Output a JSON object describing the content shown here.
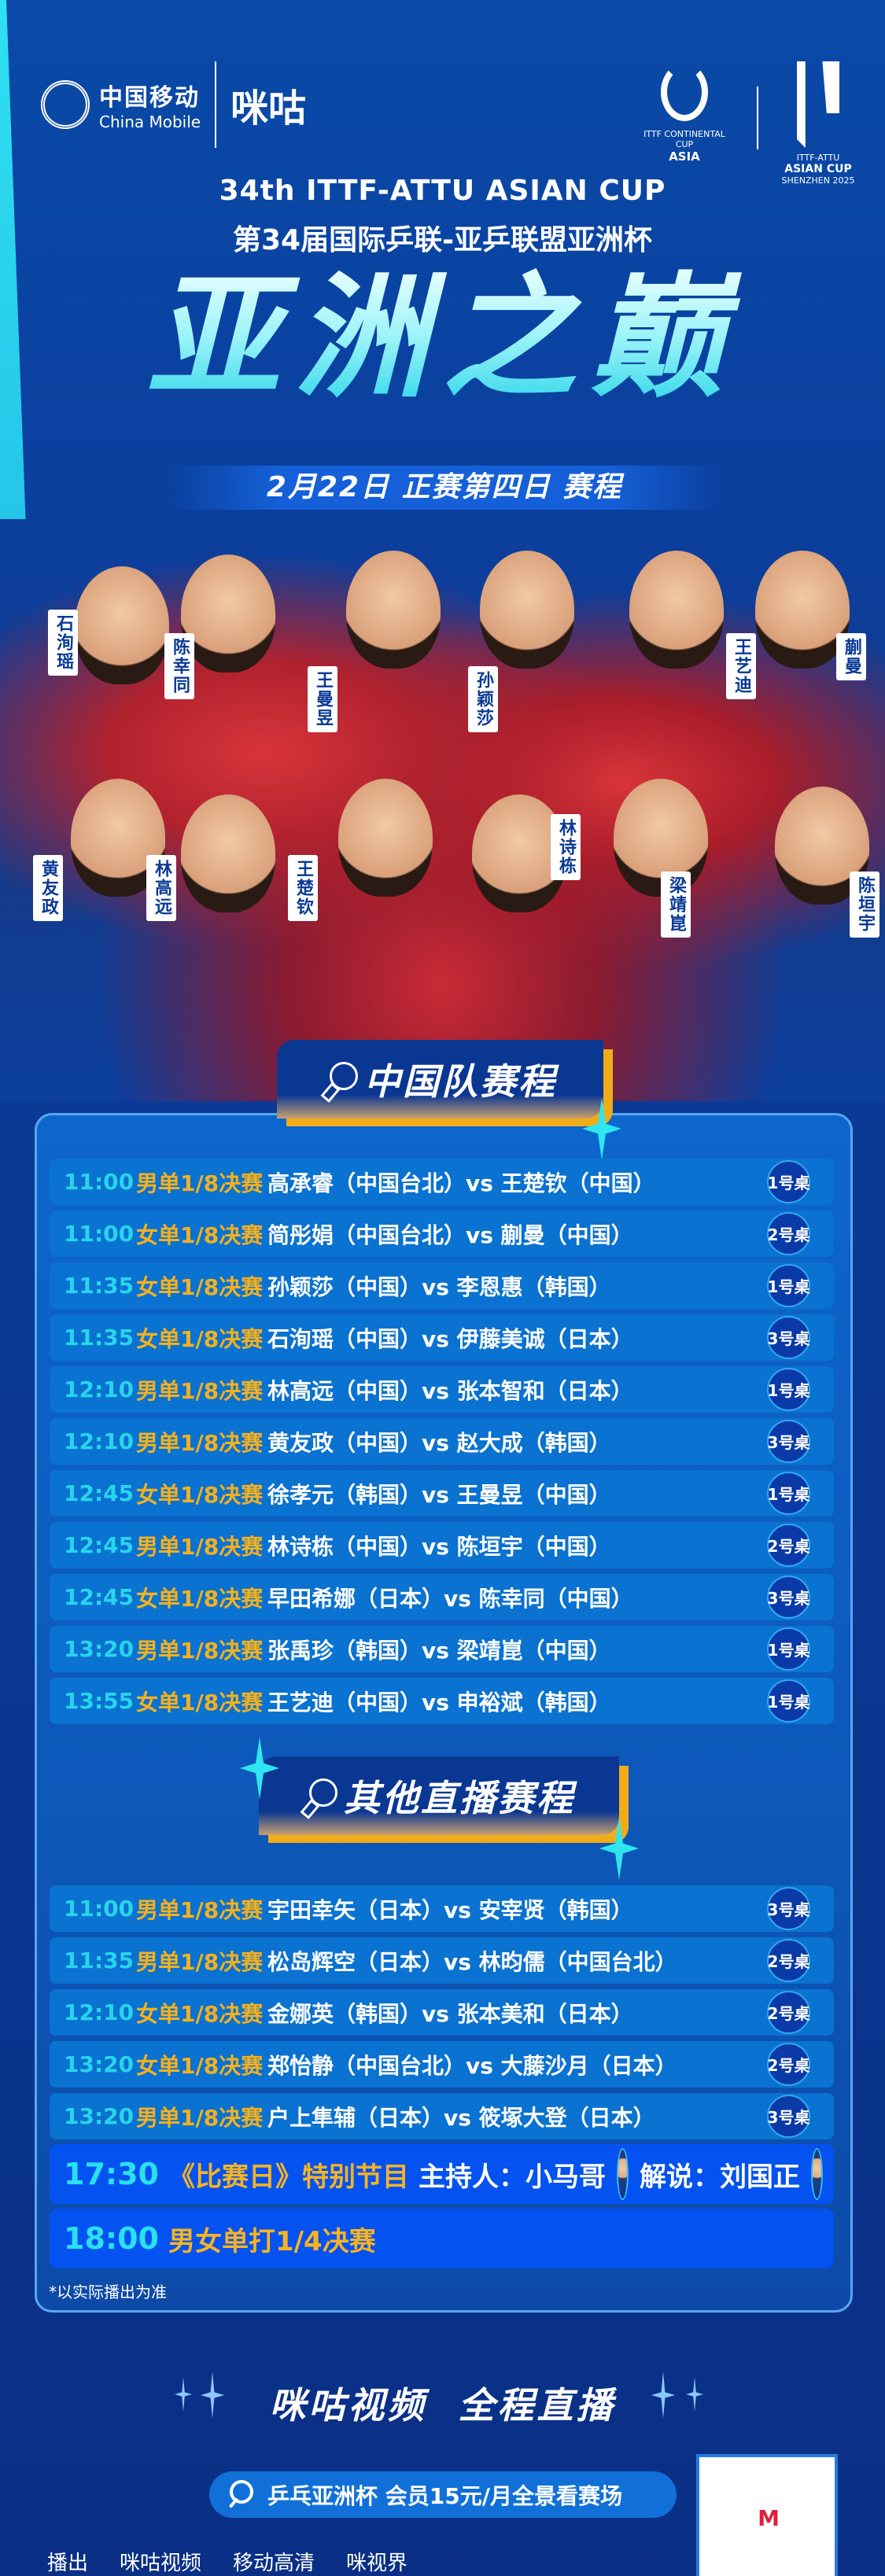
{
  "header": {
    "china_mobile_zh": "中国移动",
    "china_mobile_en": "China Mobile",
    "migu": "咪咕",
    "ittf_line1": "ITTF CONTINENTAL CUP",
    "ittf_line2": "ASIA",
    "attu_line1": "ITTF-ATTU",
    "attu_line2": "ASIAN CUP",
    "attu_line3": "SHENZHEN 2025"
  },
  "title": {
    "en": "34th ITTF-ATTU ASIAN CUP",
    "zh": "第34届国际乒联-亚乒联盟亚洲杯",
    "main": "亚洲之巅",
    "date": "2月22日  正赛第四日  赛程"
  },
  "players": [
    "石洵瑶",
    "陈幸同",
    "王曼昱",
    "孙颖莎",
    "王艺迪",
    "蒯曼",
    "黄友政",
    "林高远",
    "王楚钦",
    "林诗栋",
    "梁靖崑",
    "陈垣宇"
  ],
  "china_section": {
    "title": "中国队赛程",
    "icon": "ping-pong-paddle-icon",
    "rows": [
      {
        "time": "11:00",
        "category": "男单1/8决赛",
        "match": "高承睿（中国台北）vs 王楚钦（中国）",
        "table": "1号桌"
      },
      {
        "time": "11:00",
        "category": "女单1/8决赛",
        "match": "简彤娟（中国台北）vs 蒯曼（中国）",
        "table": "2号桌"
      },
      {
        "time": "11:35",
        "category": "女单1/8决赛",
        "match": "孙颖莎（中国）vs 李恩惠（韩国）",
        "table": "1号桌"
      },
      {
        "time": "11:35",
        "category": "女单1/8决赛",
        "match": "石洵瑶（中国）vs 伊藤美诚（日本）",
        "table": "3号桌"
      },
      {
        "time": "12:10",
        "category": "男单1/8决赛",
        "match": "林高远（中国）vs 张本智和（日本）",
        "table": "1号桌"
      },
      {
        "time": "12:10",
        "category": "男单1/8决赛",
        "match": "黄友政（中国）vs 赵大成（韩国）",
        "table": "3号桌"
      },
      {
        "time": "12:45",
        "category": "女单1/8决赛",
        "match": "徐孝元（韩国）vs 王曼昱（中国）",
        "table": "1号桌"
      },
      {
        "time": "12:45",
        "category": "男单1/8决赛",
        "match": "林诗栋（中国）vs 陈垣宇（中国）",
        "table": "2号桌"
      },
      {
        "time": "12:45",
        "category": "女单1/8决赛",
        "match": "早田希娜（日本）vs 陈幸同（中国）",
        "table": "3号桌"
      },
      {
        "time": "13:20",
        "category": "男单1/8决赛",
        "match": "张禹珍（韩国）vs 梁靖崑（中国）",
        "table": "1号桌"
      },
      {
        "time": "13:55",
        "category": "女单1/8决赛",
        "match": "王艺迪（中国）vs 申裕斌（韩国）",
        "table": "1号桌"
      }
    ]
  },
  "other_section": {
    "title": "其他直播赛程",
    "icon": "ping-pong-paddle-icon",
    "rows": [
      {
        "time": "11:00",
        "category": "男单1/8决赛",
        "match": "宇田幸矢（日本）vs 安宰贤（韩国）",
        "table": "3号桌"
      },
      {
        "time": "11:35",
        "category": "男单1/8决赛",
        "match": "松岛辉空（日本）vs 林昀儒（中国台北）",
        "table": "2号桌"
      },
      {
        "time": "12:10",
        "category": "女单1/8决赛",
        "match": "金娜英（韩国）vs 张本美和（日本）",
        "table": "2号桌"
      },
      {
        "time": "13:20",
        "category": "女单1/8决赛",
        "match": "郑怡静（中国台北）vs 大藤沙月（日本）",
        "table": "2号桌"
      },
      {
        "time": "13:20",
        "category": "男单1/8决赛",
        "match": "户上隼辅（日本）vs 筱塚大登（日本）",
        "table": "3号桌"
      }
    ]
  },
  "special": [
    {
      "time": "17:30",
      "program": "《比赛日》特别节目",
      "host_label": "主持人：小马哥",
      "commentator_label": "解说：刘国正"
    },
    {
      "time": "18:00",
      "program": "男女单打1/4决赛"
    }
  ],
  "note": "*以实际播出为准",
  "cta": {
    "part1": "咪咕视频",
    "part2": "全程直播"
  },
  "search_pill": "乒乓亚洲杯 会员15元/月全景看赛场",
  "broadcast": {
    "label": "播出",
    "platforms": [
      "咪咕视频",
      "移动高清",
      "咪视界"
    ]
  },
  "colors": {
    "time": "#28d4ec",
    "category": "#f3b01f",
    "row_bg": "#0a72d0",
    "accent_gold": "#f0ac18",
    "background": "#0a3a94"
  }
}
